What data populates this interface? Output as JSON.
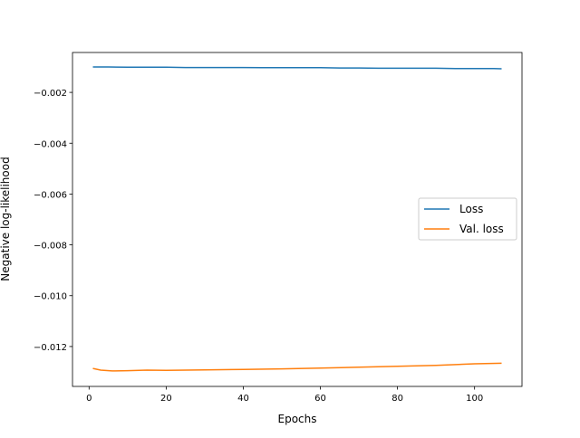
{
  "chart_data": {
    "type": "line",
    "title": "",
    "xlabel": "Epochs",
    "ylabel": "Negative log-likelihood",
    "xlim": [
      -4.3,
      112.3
    ],
    "ylim": [
      -0.01357,
      -0.00043
    ],
    "xticks": [
      0,
      20,
      40,
      60,
      80,
      100
    ],
    "xtick_labels": [
      "0",
      "20",
      "40",
      "60",
      "80",
      "100"
    ],
    "yticks": [
      -0.002,
      -0.004,
      -0.006,
      -0.008,
      -0.01,
      -0.012
    ],
    "ytick_labels": [
      "−0.002",
      "−0.004",
      "−0.006",
      "−0.008",
      "−0.010",
      "−0.012"
    ],
    "grid": false,
    "legend_position": "center-right",
    "series": [
      {
        "name": "Loss",
        "color": "#1f77b4",
        "x": [
          1,
          5,
          10,
          15,
          20,
          25,
          30,
          35,
          40,
          45,
          50,
          55,
          60,
          65,
          70,
          75,
          80,
          85,
          90,
          95,
          100,
          105,
          107
        ],
        "y": [
          -0.001,
          -0.001,
          -0.00101,
          -0.00101,
          -0.00101,
          -0.00102,
          -0.00102,
          -0.00102,
          -0.00102,
          -0.00103,
          -0.00103,
          -0.00103,
          -0.00103,
          -0.00104,
          -0.00104,
          -0.00105,
          -0.00105,
          -0.00105,
          -0.00105,
          -0.00106,
          -0.00106,
          -0.00106,
          -0.00107
        ]
      },
      {
        "name": "Val. loss",
        "color": "#ff7f0e",
        "x": [
          1,
          3,
          6,
          10,
          15,
          20,
          30,
          40,
          50,
          60,
          70,
          80,
          90,
          100,
          107
        ],
        "y": [
          -0.01286,
          -0.01293,
          -0.01296,
          -0.01295,
          -0.01293,
          -0.01294,
          -0.01292,
          -0.0129,
          -0.01288,
          -0.01285,
          -0.01281,
          -0.01278,
          -0.01274,
          -0.01268,
          -0.01266
        ]
      }
    ]
  }
}
